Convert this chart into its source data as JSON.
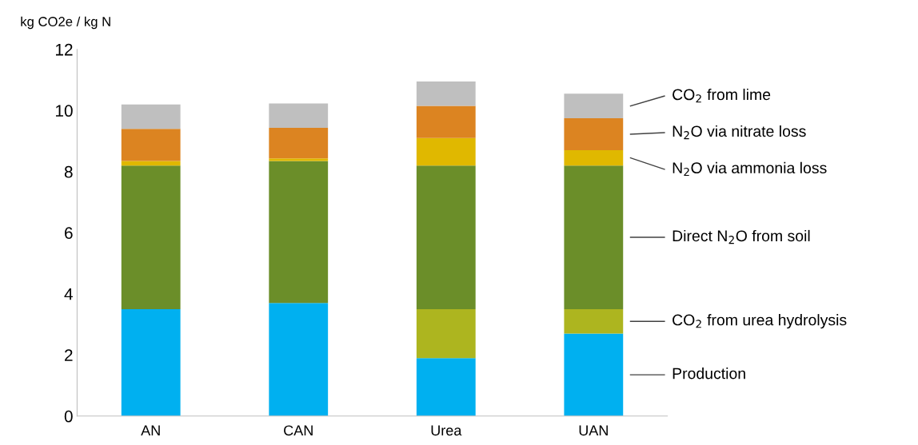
{
  "chart_data": {
    "type": "bar",
    "stacked": true,
    "ylabel": "kg CO2e / kg N",
    "categories": [
      "AN",
      "CAN",
      "Urea",
      "UAN"
    ],
    "series": [
      {
        "name": "Production",
        "color": "#00b0f0",
        "values": [
          3.5,
          3.7,
          1.9,
          2.7
        ]
      },
      {
        "name": "CO$_{2}$ from urea hydrolysis",
        "color": "#adb51f",
        "values": [
          0,
          0,
          1.6,
          0.8
        ]
      },
      {
        "name": "Direct N$_{2}$O from soil",
        "color": "#6b8e29",
        "values": [
          4.7,
          4.65,
          4.7,
          4.7
        ]
      },
      {
        "name": "N$_{2}$O via ammonia loss",
        "color": "#e0b800",
        "values": [
          0.15,
          0.08,
          0.9,
          0.5
        ]
      },
      {
        "name": "N$_{2}$O via nitrate loss",
        "color": "#dc8421",
        "values": [
          1.05,
          1.0,
          1.05,
          1.05
        ]
      },
      {
        "name": "CO$_{2}$ from lime",
        "color": "#bfbfbf",
        "values": [
          0.8,
          0.8,
          0.8,
          0.8
        ]
      }
    ],
    "ylim": [
      0,
      12
    ],
    "yticks": [
      0,
      2,
      4,
      6,
      8,
      10,
      12
    ],
    "grid": false,
    "legend": "right"
  }
}
